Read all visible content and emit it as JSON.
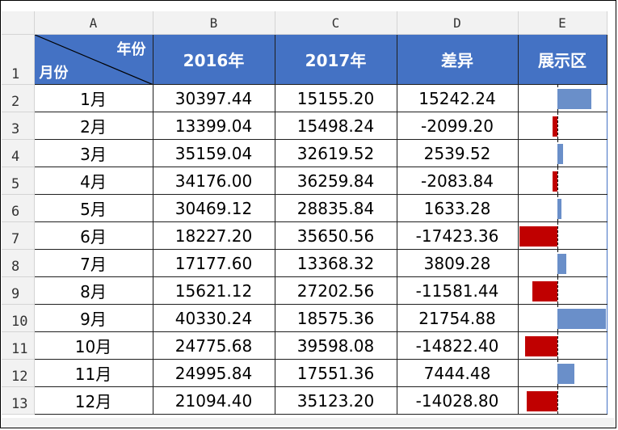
{
  "columns": [
    "A",
    "B",
    "C",
    "D",
    "E"
  ],
  "header": {
    "corner_top": "年份",
    "corner_bottom": "月份",
    "col_b": "2016年",
    "col_c": "2017年",
    "col_d": "差异",
    "col_e": "展示区"
  },
  "row_numbers": [
    "1",
    "2",
    "3",
    "4",
    "5",
    "6",
    "7",
    "8",
    "9",
    "10",
    "11",
    "12",
    "13"
  ],
  "rows": [
    {
      "month": "1月",
      "y2016": "30397.44",
      "y2017": "15155.20",
      "diff": "15242.24",
      "diff_value": 15242.24
    },
    {
      "month": "2月",
      "y2016": "13399.04",
      "y2017": "15498.24",
      "diff": "-2099.20",
      "diff_value": -2099.2
    },
    {
      "month": "3月",
      "y2016": "35159.04",
      "y2017": "32619.52",
      "diff": "2539.52",
      "diff_value": 2539.52
    },
    {
      "month": "4月",
      "y2016": "34176.00",
      "y2017": "36259.84",
      "diff": "-2083.84",
      "diff_value": -2083.84
    },
    {
      "month": "5月",
      "y2016": "30469.12",
      "y2017": "28835.84",
      "diff": "1633.28",
      "diff_value": 1633.28
    },
    {
      "month": "6月",
      "y2016": "18227.20",
      "y2017": "35650.56",
      "diff": "-17423.36",
      "diff_value": -17423.36
    },
    {
      "month": "7月",
      "y2016": "17177.60",
      "y2017": "13368.32",
      "diff": "3809.28",
      "diff_value": 3809.28
    },
    {
      "month": "8月",
      "y2016": "15621.12",
      "y2017": "27202.56",
      "diff": "-11581.44",
      "diff_value": -11581.44
    },
    {
      "month": "9月",
      "y2016": "40330.24",
      "y2017": "18575.36",
      "diff": "21754.88",
      "diff_value": 21754.88
    },
    {
      "month": "10月",
      "y2016": "24775.68",
      "y2017": "39598.08",
      "diff": "-14822.40",
      "diff_value": -14822.4
    },
    {
      "month": "11月",
      "y2016": "24995.84",
      "y2017": "17551.36",
      "diff": "7444.48",
      "diff_value": 7444.48
    },
    {
      "month": "12月",
      "y2016": "21094.40",
      "y2017": "35123.20",
      "diff": "-14028.80",
      "diff_value": -14028.8
    }
  ],
  "colors": {
    "header_bg": "#4472c4",
    "positive_bar": "#6a8fc9",
    "negative_bar": "#c00000"
  }
}
